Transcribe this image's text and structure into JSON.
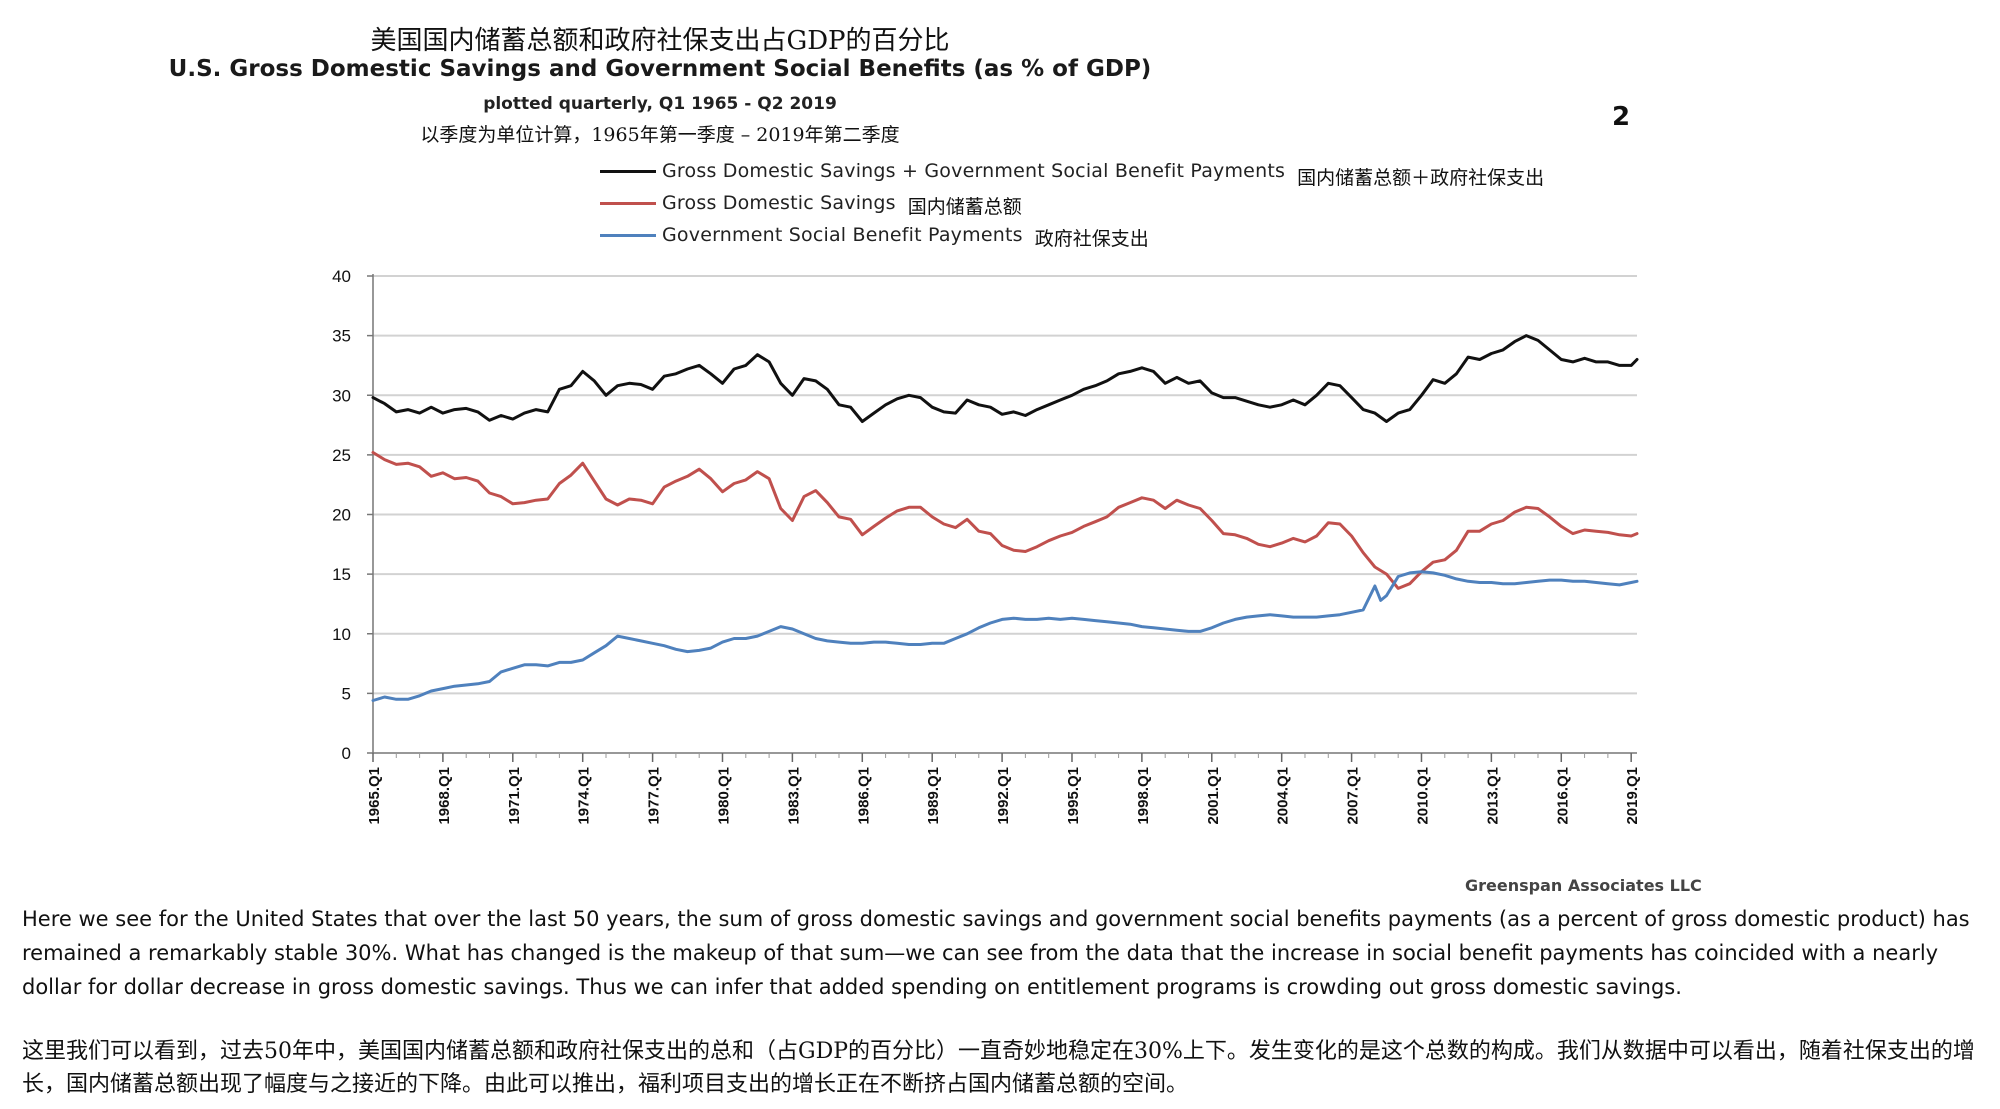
{
  "header": {
    "title_cn": "美国国内储蓄总额和政府社保支出占GDP的百分比",
    "title_en": "U.S. Gross Domestic Savings and Government Social Benefits (as % of GDP)",
    "subtitle_en": "plotted quarterly, Q1 1965 - Q2 2019",
    "subtitle_cn": "以季度为单位计算，1965年第一季度 – 2019年第二季度",
    "page_number": "2"
  },
  "legend": [
    {
      "label_en": "Gross Domestic Savings + Government Social Benefit Payments",
      "label_cn": "国内储蓄总额＋政府社保支出",
      "color": "#111111"
    },
    {
      "label_en": "Gross Domestic Savings",
      "label_cn": "国内储蓄总额",
      "color": "#c0504d"
    },
    {
      "label_en": "Government Social Benefit Payments",
      "label_cn": "政府社保支出",
      "color": "#4f81bd"
    }
  ],
  "source": "Greenspan Associates LLC",
  "text": {
    "paragraph_en": "Here we see for the United States that over the last 50 years, the sum of gross domestic savings and government social benefits payments (as a percent of gross domestic product) has remained a remarkably stable 30%. What has changed is the makeup of that sum—we can see from the data that the increase in social benefit payments has coincided with a nearly dollar for dollar decrease in gross domestic savings. Thus we can infer that added spending on entitlement programs is crowding out gross domestic savings.",
    "paragraph_cn": "这里我们可以看到，过去50年中，美国国内储蓄总额和政府社保支出的总和（占GDP的百分比）一直奇妙地稳定在30%上下。发生变化的是这个总数的构成。我们从数据中可以看出，随着社保支出的增长，国内储蓄总额出现了幅度与之接近的下降。由此可以推出，福利项目支出的增长正在不断挤占国内储蓄总额的空间。"
  },
  "chart_data": {
    "type": "line",
    "title": "U.S. Gross Domestic Savings and Government Social Benefits (as % of GDP)",
    "xlabel": "",
    "ylabel": "",
    "ylim": [
      0,
      40
    ],
    "yticks": [
      0,
      5,
      10,
      15,
      20,
      25,
      30,
      35,
      40
    ],
    "x_range": [
      1965.0,
      2019.25
    ],
    "x_tick_labels": [
      "1965.Q1",
      "1968.Q1",
      "1971.Q1",
      "1974.Q1",
      "1977.Q1",
      "1980.Q1",
      "1983.Q1",
      "1986.Q1",
      "1989.Q1",
      "1992.Q1",
      "1995.Q1",
      "1998.Q1",
      "2001.Q1",
      "2004.Q1",
      "2007.Q1",
      "2010.Q1",
      "2013.Q1",
      "2016.Q1",
      "2019.Q1"
    ],
    "grid": true,
    "series": [
      {
        "name": "Gross Domestic Savings + Government Social Benefit Payments",
        "color": "#111111",
        "x": [
          1965,
          1965.5,
          1966,
          1966.5,
          1967,
          1967.5,
          1968,
          1968.5,
          1969,
          1969.5,
          1970,
          1970.5,
          1971,
          1971.5,
          1972,
          1972.5,
          1973,
          1973.5,
          1974,
          1974.5,
          1975,
          1975.5,
          1976,
          1976.5,
          1977,
          1977.5,
          1978,
          1978.5,
          1979,
          1979.5,
          1980,
          1980.5,
          1981,
          1981.5,
          1982,
          1982.5,
          1983,
          1983.5,
          1984,
          1984.5,
          1985,
          1985.5,
          1986,
          1986.5,
          1987,
          1987.5,
          1988,
          1988.5,
          1989,
          1989.5,
          1990,
          1990.5,
          1991,
          1991.5,
          1992,
          1992.5,
          1993,
          1993.5,
          1994,
          1994.5,
          1995,
          1995.5,
          1996,
          1996.5,
          1997,
          1997.5,
          1998,
          1998.5,
          1999,
          1999.5,
          2000,
          2000.5,
          2001,
          2001.5,
          2002,
          2002.5,
          2003,
          2003.5,
          2004,
          2004.5,
          2005,
          2005.5,
          2006,
          2006.5,
          2007,
          2007.5,
          2008,
          2008.5,
          2009,
          2009.5,
          2010,
          2010.5,
          2011,
          2011.5,
          2012,
          2012.5,
          2013,
          2013.5,
          2014,
          2014.5,
          2015,
          2015.5,
          2016,
          2016.5,
          2017,
          2017.5,
          2018,
          2018.5,
          2019,
          2019.25
        ],
        "values": [
          29.8,
          29.3,
          28.6,
          28.8,
          28.5,
          29.0,
          28.5,
          28.8,
          28.9,
          28.6,
          27.9,
          28.3,
          28.0,
          28.5,
          28.8,
          28.6,
          30.5,
          30.8,
          32.0,
          31.2,
          30.0,
          30.8,
          31.0,
          30.9,
          30.5,
          31.6,
          31.8,
          32.2,
          32.5,
          31.8,
          31.0,
          32.2,
          32.5,
          33.4,
          32.8,
          31.0,
          30.0,
          31.4,
          31.2,
          30.5,
          29.2,
          29.0,
          27.8,
          28.5,
          29.2,
          29.7,
          30.0,
          29.8,
          29.0,
          28.6,
          28.5,
          29.6,
          29.2,
          29.0,
          28.4,
          28.6,
          28.3,
          28.8,
          29.2,
          29.6,
          30.0,
          30.5,
          30.8,
          31.2,
          31.8,
          32.0,
          32.3,
          32.0,
          31.0,
          31.5,
          31.0,
          31.2,
          30.2,
          29.8,
          29.8,
          29.5,
          29.2,
          29.0,
          29.2,
          29.6,
          29.2,
          30.0,
          31.0,
          30.8,
          29.8,
          28.8,
          28.5,
          27.8,
          28.5,
          28.8,
          30.0,
          31.3,
          31.0,
          31.8,
          33.2,
          33.0,
          33.5,
          33.8,
          34.5,
          35.0,
          34.6,
          33.8,
          33.0,
          32.8,
          33.1,
          32.8,
          32.8,
          32.5,
          32.5,
          33.0
        ]
      },
      {
        "name": "Gross Domestic Savings",
        "color": "#c0504d",
        "x": [
          1965,
          1965.5,
          1966,
          1966.5,
          1967,
          1967.5,
          1968,
          1968.5,
          1969,
          1969.5,
          1970,
          1970.5,
          1971,
          1971.5,
          1972,
          1972.5,
          1973,
          1973.5,
          1974,
          1974.5,
          1975,
          1975.5,
          1976,
          1976.5,
          1977,
          1977.5,
          1978,
          1978.5,
          1979,
          1979.5,
          1980,
          1980.5,
          1981,
          1981.5,
          1982,
          1982.5,
          1983,
          1983.5,
          1984,
          1984.5,
          1985,
          1985.5,
          1986,
          1986.5,
          1987,
          1987.5,
          1988,
          1988.5,
          1989,
          1989.5,
          1990,
          1990.5,
          1991,
          1991.5,
          1992,
          1992.5,
          1993,
          1993.5,
          1994,
          1994.5,
          1995,
          1995.5,
          1996,
          1996.5,
          1997,
          1997.5,
          1998,
          1998.5,
          1999,
          1999.5,
          2000,
          2000.5,
          2001,
          2001.5,
          2002,
          2002.5,
          2003,
          2003.5,
          2004,
          2004.5,
          2005,
          2005.5,
          2006,
          2006.5,
          2007,
          2007.5,
          2008,
          2008.5,
          2009,
          2009.5,
          2010,
          2010.5,
          2011,
          2011.5,
          2012,
          2012.5,
          2013,
          2013.5,
          2014,
          2014.5,
          2015,
          2015.5,
          2016,
          2016.5,
          2017,
          2017.5,
          2018,
          2018.5,
          2019,
          2019.25
        ],
        "values": [
          25.2,
          24.6,
          24.2,
          24.3,
          24.0,
          23.2,
          23.5,
          23.0,
          23.1,
          22.8,
          21.8,
          21.5,
          20.9,
          21.0,
          21.2,
          21.3,
          22.6,
          23.3,
          24.3,
          22.8,
          21.3,
          20.8,
          21.3,
          21.2,
          20.9,
          22.3,
          22.8,
          23.2,
          23.8,
          23.0,
          21.9,
          22.6,
          22.9,
          23.6,
          23.0,
          20.5,
          19.5,
          21.5,
          22.0,
          21.0,
          19.8,
          19.6,
          18.3,
          19.0,
          19.7,
          20.3,
          20.6,
          20.6,
          19.8,
          19.2,
          18.9,
          19.6,
          18.6,
          18.4,
          17.4,
          17.0,
          16.9,
          17.3,
          17.8,
          18.2,
          18.5,
          19.0,
          19.4,
          19.8,
          20.6,
          21.0,
          21.4,
          21.2,
          20.5,
          21.2,
          20.8,
          20.5,
          19.5,
          18.4,
          18.3,
          18.0,
          17.5,
          17.3,
          17.6,
          18.0,
          17.7,
          18.2,
          19.3,
          19.2,
          18.2,
          16.8,
          15.6,
          15.0,
          13.8,
          14.2,
          15.2,
          16.0,
          16.2,
          17.0,
          18.6,
          18.6,
          19.2,
          19.5,
          20.2,
          20.6,
          20.5,
          19.8,
          19.0,
          18.4,
          18.7,
          18.6,
          18.5,
          18.3,
          18.2,
          18.4
        ]
      },
      {
        "name": "Government Social Benefit Payments",
        "color": "#4f81bd",
        "x": [
          1965,
          1965.5,
          1966,
          1966.5,
          1967,
          1967.5,
          1968,
          1968.5,
          1969,
          1969.5,
          1970,
          1970.5,
          1971,
          1971.5,
          1972,
          1972.5,
          1973,
          1973.5,
          1974,
          1974.5,
          1975,
          1975.5,
          1976,
          1976.5,
          1977,
          1977.5,
          1978,
          1978.5,
          1979,
          1979.5,
          1980,
          1980.5,
          1981,
          1981.5,
          1982,
          1982.5,
          1983,
          1983.5,
          1984,
          1984.5,
          1985,
          1985.5,
          1986,
          1986.5,
          1987,
          1987.5,
          1988,
          1988.5,
          1989,
          1989.5,
          1990,
          1990.5,
          1991,
          1991.5,
          1992,
          1992.5,
          1993,
          1993.5,
          1994,
          1994.5,
          1995,
          1995.5,
          1996,
          1996.5,
          1997,
          1997.5,
          1998,
          1998.5,
          1999,
          1999.5,
          2000,
          2000.5,
          2001,
          2001.5,
          2002,
          2002.5,
          2003,
          2003.5,
          2004,
          2004.5,
          2005,
          2005.5,
          2006,
          2006.5,
          2007,
          2007.5,
          2008,
          2008.25,
          2008.5,
          2009,
          2009.5,
          2010,
          2010.5,
          2011,
          2011.5,
          2012,
          2012.5,
          2013,
          2013.5,
          2014,
          2014.5,
          2015,
          2015.5,
          2016,
          2016.5,
          2017,
          2017.5,
          2018,
          2018.5,
          2019,
          2019.25
        ],
        "values": [
          4.4,
          4.7,
          4.5,
          4.5,
          4.8,
          5.2,
          5.4,
          5.6,
          5.7,
          5.8,
          6.0,
          6.8,
          7.1,
          7.4,
          7.4,
          7.3,
          7.6,
          7.6,
          7.8,
          8.4,
          9.0,
          9.8,
          9.6,
          9.4,
          9.2,
          9.0,
          8.7,
          8.5,
          8.6,
          8.8,
          9.3,
          9.6,
          9.6,
          9.8,
          10.2,
          10.6,
          10.4,
          10.0,
          9.6,
          9.4,
          9.3,
          9.2,
          9.2,
          9.3,
          9.3,
          9.2,
          9.1,
          9.1,
          9.2,
          9.2,
          9.6,
          10.0,
          10.5,
          10.9,
          11.2,
          11.3,
          11.2,
          11.2,
          11.3,
          11.2,
          11.3,
          11.2,
          11.1,
          11.0,
          10.9,
          10.8,
          10.6,
          10.5,
          10.4,
          10.3,
          10.2,
          10.2,
          10.5,
          10.9,
          11.2,
          11.4,
          11.5,
          11.6,
          11.5,
          11.4,
          11.4,
          11.4,
          11.5,
          11.6,
          11.8,
          12.0,
          14.0,
          12.8,
          13.2,
          14.8,
          15.1,
          15.2,
          15.1,
          14.9,
          14.6,
          14.4,
          14.3,
          14.3,
          14.2,
          14.2,
          14.3,
          14.4,
          14.5,
          14.5,
          14.4,
          14.4,
          14.3,
          14.2,
          14.1,
          14.3,
          14.4
        ]
      }
    ]
  }
}
